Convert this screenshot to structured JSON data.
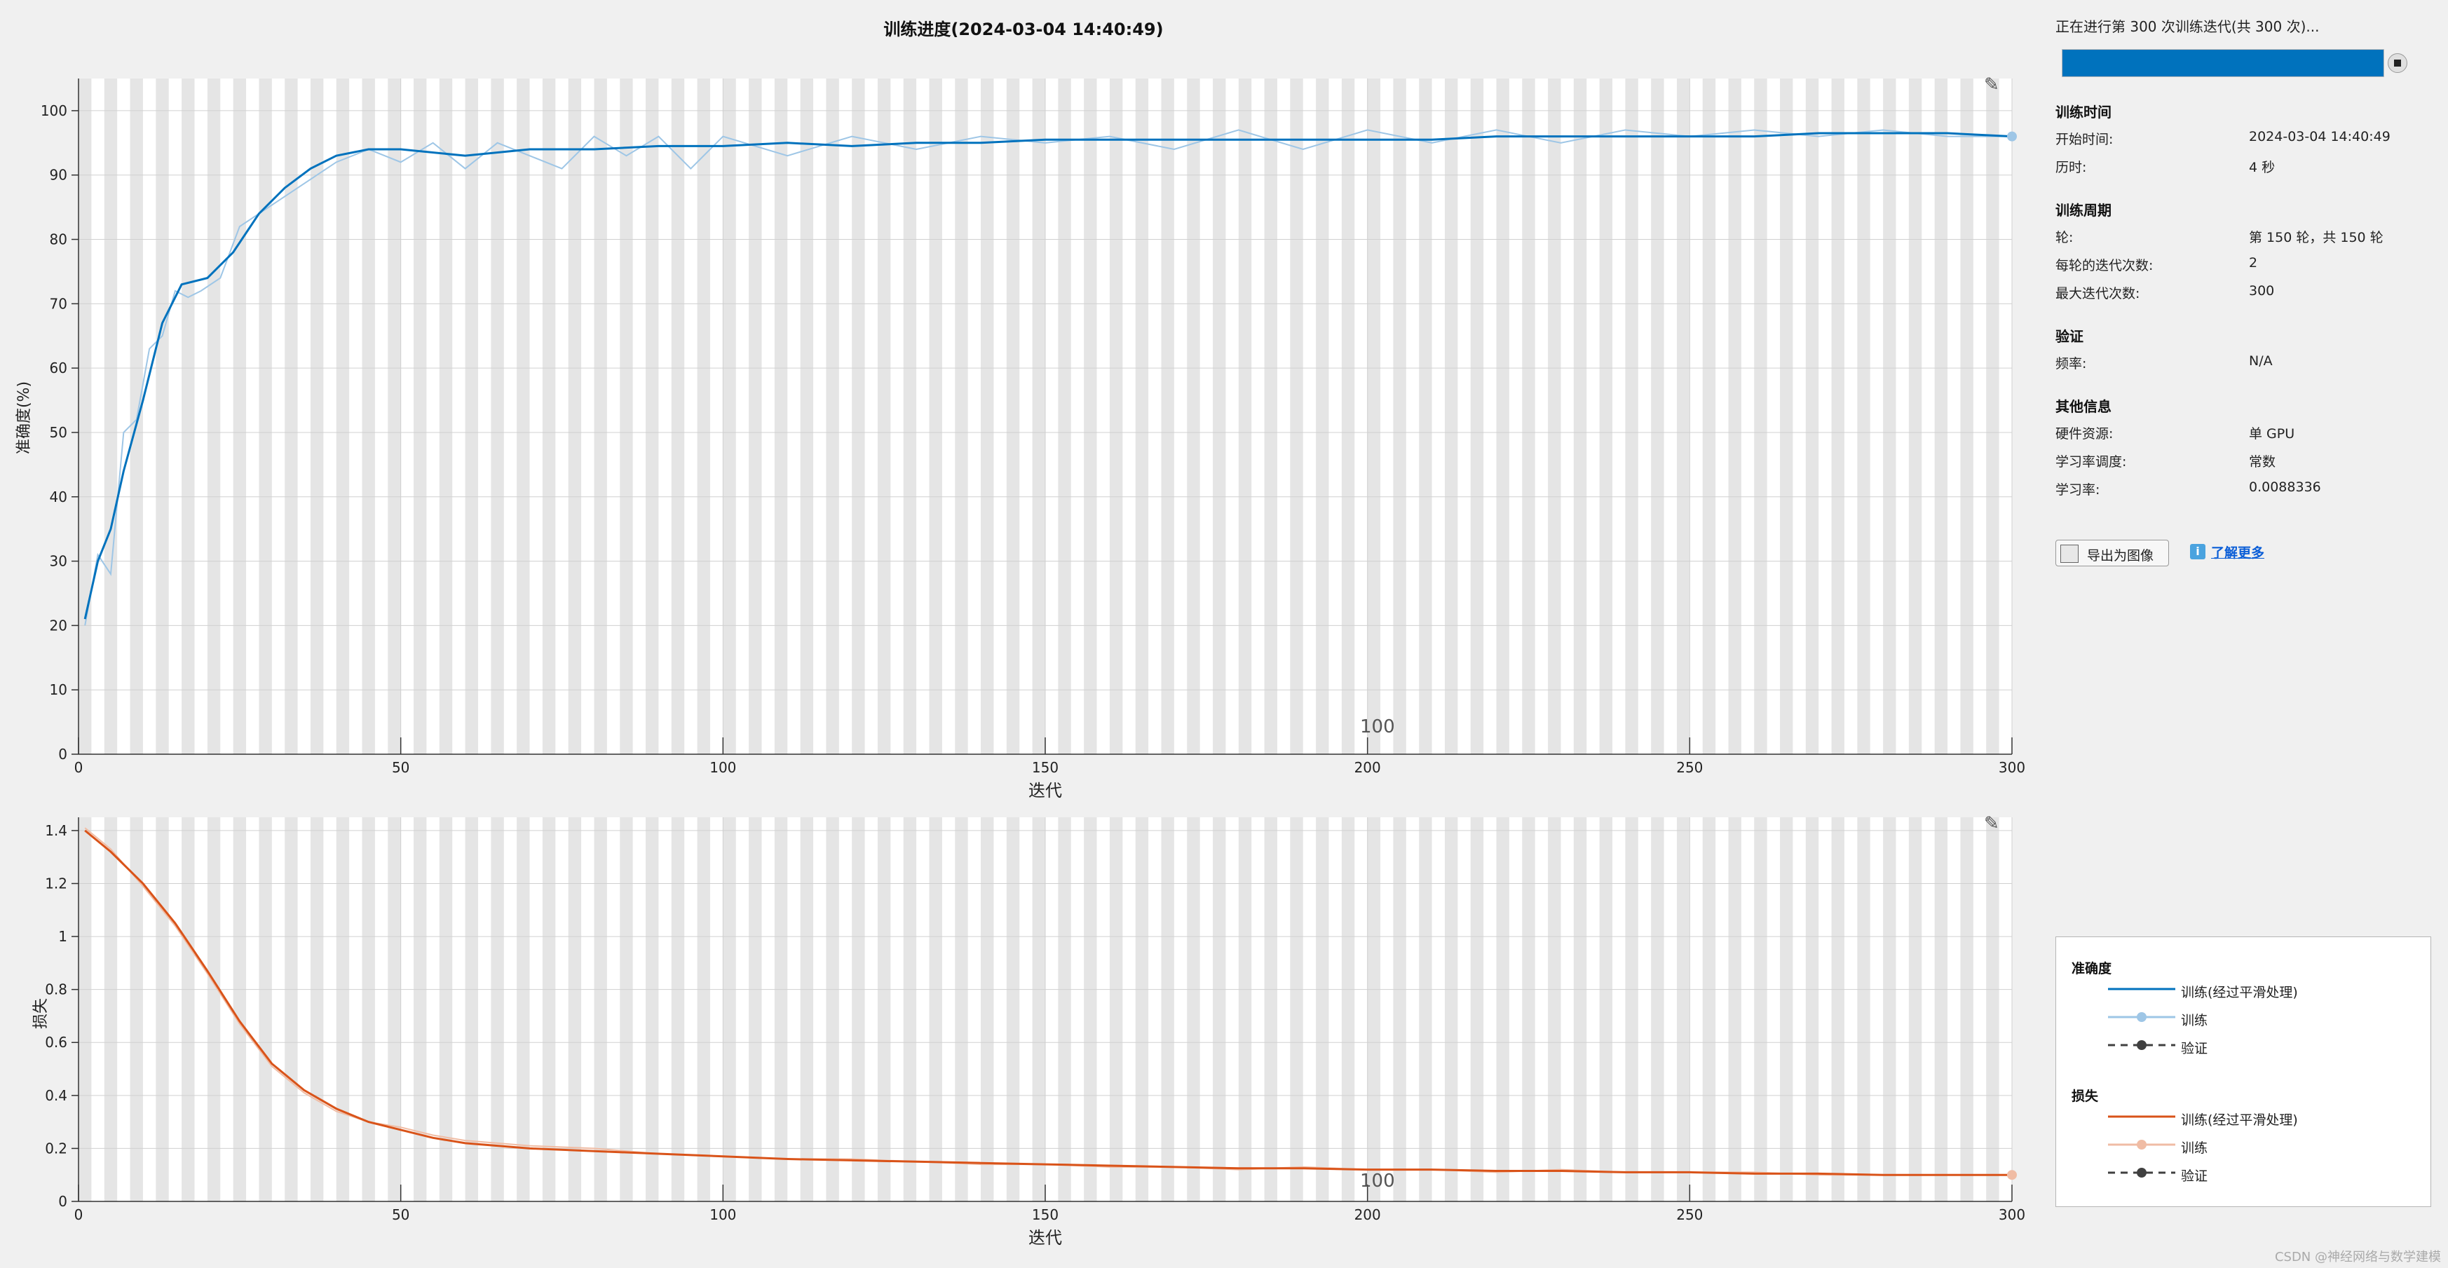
{
  "title": "训练进度(2024-03-04 14:40:49)",
  "accuracy_chart": {
    "ylabel": "准确度(%)",
    "xlabel": "迭代",
    "epoch_marker": "100",
    "tool_icon": "pencil-edit-icon"
  },
  "loss_chart": {
    "ylabel": "损失",
    "xlabel": "迭代",
    "epoch_marker": "100",
    "tool_icon": "pencil-edit-icon"
  },
  "panel": {
    "status": "正在进行第 300 次训练迭代(共 300 次)...",
    "progress": 1.0,
    "training_time": {
      "title": "训练时间",
      "start_label": "开始时间:",
      "start_value": "2024-03-04 14:40:49",
      "elapsed_label": "历时:",
      "elapsed_value": "4 秒"
    },
    "training_cycle": {
      "title": "训练周期",
      "epoch_label": "轮:",
      "epoch_value": "第 150 轮，共 150 轮",
      "iter_per_epoch_label": "每轮的迭代次数:",
      "iter_per_epoch_value": "2",
      "max_iter_label": "最大迭代次数:",
      "max_iter_value": "300"
    },
    "validation": {
      "title": "验证",
      "freq_label": "频率:",
      "freq_value": "N/A"
    },
    "other": {
      "title": "其他信息",
      "hw_label": "硬件资源:",
      "hw_value": "单 GPU",
      "lr_sched_label": "学习率调度:",
      "lr_sched_value": "常数",
      "lr_label": "学习率:",
      "lr_value": "0.0088336"
    },
    "export_label": "导出为图像",
    "learn_more": "了解更多"
  },
  "legend": {
    "acc_title": "准确度",
    "acc_smooth": "训练(经过平滑处理)",
    "acc_train": "训练",
    "acc_val": "验证",
    "loss_title": "损失",
    "loss_smooth": "训练(经过平滑处理)",
    "loss_train": "训练",
    "loss_val": "验证"
  },
  "watermark": "CSDN @神经网络与数学建模",
  "colors": {
    "accuracy_smooth": "#0072bd",
    "accuracy_raw": "#9ec6e6",
    "loss_smooth": "#d95319",
    "loss_raw": "#f0bca4",
    "epoch_band": "#e5e5e5",
    "progress": "#0072bd",
    "validation": "#404040"
  },
  "chart_data": [
    {
      "type": "line",
      "title": "",
      "xlabel": "迭代",
      "ylabel": "准确度(%)",
      "xlim": [
        0,
        300
      ],
      "ylim": [
        0,
        105
      ],
      "xticks": [
        0,
        50,
        100,
        150,
        200,
        250,
        300
      ],
      "yticks": [
        0,
        10,
        20,
        30,
        40,
        50,
        60,
        70,
        80,
        90,
        100
      ],
      "grid": true,
      "series": [
        {
          "name": "训练(经过平滑处理)",
          "x": [
            1,
            3,
            5,
            7,
            10,
            13,
            16,
            20,
            24,
            28,
            32,
            36,
            40,
            45,
            50,
            60,
            70,
            80,
            90,
            100,
            110,
            120,
            130,
            140,
            150,
            160,
            170,
            180,
            190,
            200,
            210,
            220,
            230,
            240,
            250,
            260,
            270,
            280,
            290,
            300
          ],
          "y": [
            21,
            30,
            35,
            44,
            55,
            67,
            73,
            74,
            78,
            84,
            88,
            91,
            93,
            94,
            94,
            93,
            94,
            94,
            94.5,
            94.5,
            95,
            94.5,
            95,
            95,
            95.5,
            95.5,
            95.5,
            95.5,
            95.5,
            95.5,
            95.5,
            96,
            96,
            96,
            96,
            96,
            96.5,
            96.5,
            96.5,
            96
          ]
        },
        {
          "name": "训练",
          "x": [
            1,
            3,
            5,
            7,
            9,
            11,
            13,
            15,
            17,
            19,
            22,
            25,
            28,
            31,
            34,
            37,
            40,
            45,
            50,
            55,
            60,
            65,
            70,
            75,
            80,
            85,
            90,
            95,
            100,
            110,
            120,
            130,
            140,
            150,
            160,
            170,
            180,
            190,
            200,
            210,
            220,
            230,
            240,
            250,
            260,
            270,
            280,
            290,
            300
          ],
          "y": [
            20,
            31,
            28,
            50,
            52,
            63,
            65,
            72,
            71,
            72,
            74,
            82,
            84,
            86,
            88,
            90,
            92,
            94,
            92,
            95,
            91,
            95,
            93,
            91,
            96,
            93,
            96,
            91,
            96,
            93,
            96,
            94,
            96,
            95,
            96,
            94,
            97,
            94,
            97,
            95,
            97,
            95,
            97,
            96,
            97,
            96,
            97,
            96,
            96
          ]
        }
      ]
    },
    {
      "type": "line",
      "title": "",
      "xlabel": "迭代",
      "ylabel": "损失",
      "xlim": [
        0,
        300
      ],
      "ylim": [
        0,
        1.45
      ],
      "xticks": [
        0,
        50,
        100,
        150,
        200,
        250,
        300
      ],
      "yticks": [
        0,
        0.2,
        0.4,
        0.6,
        0.8,
        1,
        1.2,
        1.4
      ],
      "grid": true,
      "series": [
        {
          "name": "训练(经过平滑处理)",
          "x": [
            1,
            5,
            10,
            15,
            20,
            25,
            30,
            35,
            40,
            45,
            50,
            55,
            60,
            70,
            80,
            90,
            100,
            110,
            120,
            130,
            140,
            150,
            160,
            170,
            180,
            190,
            200,
            210,
            220,
            230,
            240,
            250,
            260,
            270,
            280,
            290,
            300
          ],
          "y": [
            1.4,
            1.32,
            1.2,
            1.05,
            0.87,
            0.68,
            0.52,
            0.42,
            0.35,
            0.3,
            0.27,
            0.24,
            0.22,
            0.2,
            0.19,
            0.18,
            0.17,
            0.16,
            0.155,
            0.15,
            0.145,
            0.14,
            0.135,
            0.13,
            0.125,
            0.125,
            0.12,
            0.12,
            0.115,
            0.115,
            0.11,
            0.11,
            0.105,
            0.105,
            0.1,
            0.1,
            0.1
          ]
        },
        {
          "name": "训练",
          "x": [
            1,
            5,
            10,
            15,
            20,
            25,
            30,
            35,
            40,
            45,
            50,
            55,
            60,
            70,
            80,
            90,
            100,
            110,
            120,
            130,
            140,
            150,
            160,
            170,
            180,
            190,
            200,
            210,
            220,
            230,
            240,
            250,
            260,
            270,
            280,
            290,
            300
          ],
          "y": [
            1.41,
            1.33,
            1.19,
            1.04,
            0.86,
            0.67,
            0.51,
            0.41,
            0.34,
            0.3,
            0.28,
            0.25,
            0.23,
            0.21,
            0.2,
            0.18,
            0.17,
            0.16,
            0.16,
            0.15,
            0.14,
            0.14,
            0.13,
            0.13,
            0.12,
            0.13,
            0.12,
            0.12,
            0.11,
            0.12,
            0.11,
            0.11,
            0.11,
            0.1,
            0.1,
            0.1,
            0.1
          ]
        }
      ]
    }
  ]
}
